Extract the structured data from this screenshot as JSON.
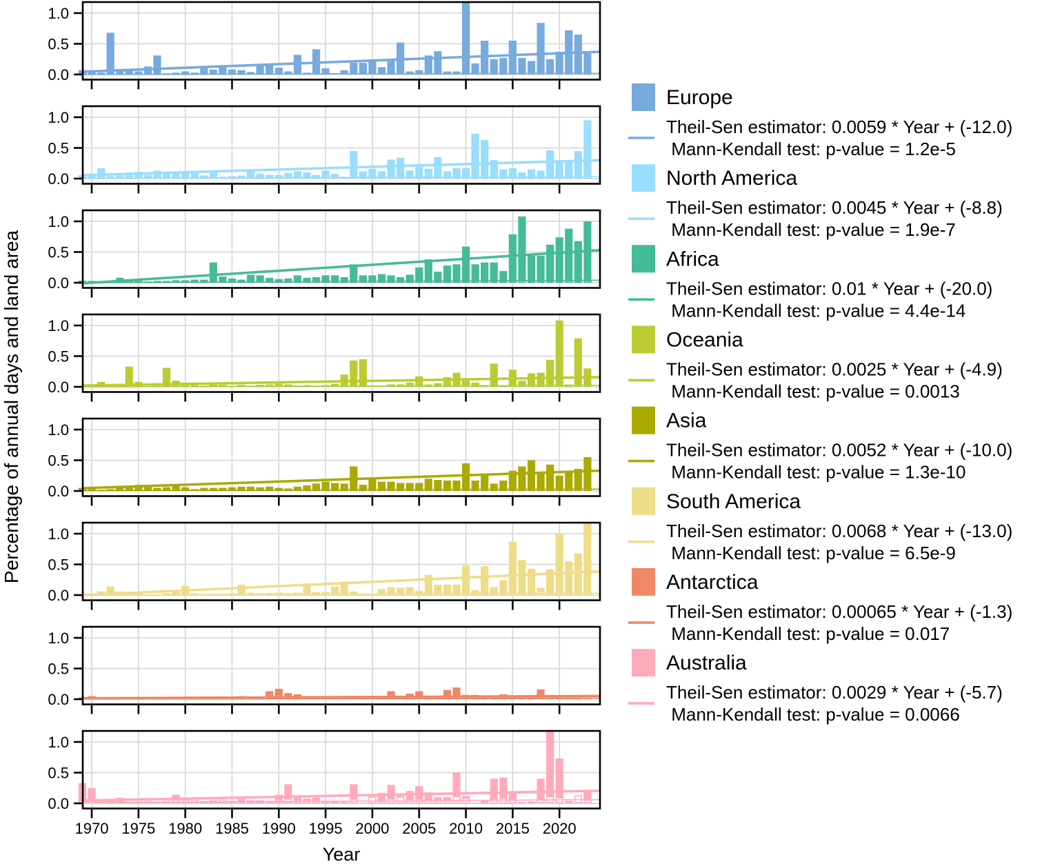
{
  "ylabel": "Percentage of annual days and land area",
  "xlabel": "Year",
  "y_tick_labels": [
    "0.0",
    "0.5",
    "1.0"
  ],
  "x_tick_labels": [
    "1970",
    "1975",
    "1980",
    "1985",
    "1990",
    "1995",
    "2000",
    "2005",
    "2010",
    "2015",
    "2020"
  ],
  "chart_data": {
    "type": "bar",
    "x_start_year": 1969,
    "ylim": [
      -0.085,
      1.185
    ],
    "y_ticks": [
      0.0,
      0.5,
      1.0
    ],
    "x_ticks": [
      1970,
      1975,
      1980,
      1985,
      1990,
      1995,
      2000,
      2005,
      2010,
      2015,
      2020
    ],
    "grid": true,
    "legend_position": "right",
    "panels": [
      {
        "name": "Europe",
        "color": "#77AADD",
        "days": [
          0.07,
          0.04,
          0.03,
          0.68,
          0.09,
          0.06,
          0.05,
          0.13,
          0.31,
          0.02,
          0.03,
          0.05,
          0.03,
          0.12,
          0.08,
          0.12,
          0.08,
          0.07,
          0.04,
          0.15,
          0.15,
          0.11,
          0.05,
          0.32,
          0.03,
          0.41,
          0.1,
          0.02,
          0.07,
          0.19,
          0.19,
          0.23,
          0.12,
          0.22,
          0.52,
          0.05,
          0.07,
          0.31,
          0.38,
          0.05,
          0.05,
          1.25,
          0.18,
          0.55,
          0.25,
          0.27,
          0.55,
          0.27,
          0.22,
          0.84,
          0.25,
          0.37,
          0.72,
          0.65,
          0.38
        ],
        "area": [
          0.01,
          0.01,
          0.01,
          0.02,
          0.01,
          0.01,
          0.01,
          0.01,
          0.01,
          0.01,
          0.01,
          0.01,
          0.01,
          0.01,
          0.01,
          0.01,
          0.01,
          0.01,
          0.01,
          0.01,
          0.01,
          0.01,
          0.01,
          0.01,
          0.01,
          0.01,
          0.01,
          0.01,
          0.01,
          0.01,
          0.01,
          0.01,
          0.01,
          0.01,
          0.02,
          0.01,
          0.01,
          0.01,
          0.01,
          0.01,
          0.01,
          0.02,
          0.01,
          0.02,
          0.01,
          0.01,
          0.02,
          0.01,
          0.01,
          0.02,
          0.01,
          0.01,
          0.02,
          0.02,
          0.01
        ],
        "trend_line": {
          "y1969": 0.045,
          "y2024": 0.37
        },
        "area_trend_line": {
          "y1969": 0.0,
          "y2024": 0.02
        },
        "theil_sen_label": "Theil-Sen estimator: 0.0059 * Year + (-12.0)",
        "mann_kendall_label": " Mann-Kendall test: p-value = 1.2e-5"
      },
      {
        "name": "North America",
        "color": "#99DDFF",
        "days": [
          0.06,
          0.06,
          0.17,
          0.04,
          0.05,
          0.1,
          0.11,
          0.06,
          0.13,
          0.08,
          0.08,
          0.11,
          0.12,
          0.05,
          0.12,
          0.03,
          0.04,
          0.05,
          0.14,
          0.08,
          0.06,
          0.06,
          0.09,
          0.12,
          0.1,
          0.06,
          0.13,
          0.08,
          0.03,
          0.45,
          0.12,
          0.16,
          0.12,
          0.31,
          0.34,
          0.13,
          0.19,
          0.16,
          0.35,
          0.12,
          0.17,
          0.17,
          0.73,
          0.63,
          0.3,
          0.15,
          0.17,
          0.1,
          0.15,
          0.13,
          0.46,
          0.28,
          0.28,
          0.45,
          0.95
        ],
        "area": [
          0.01,
          0.01,
          0.02,
          0.01,
          0.01,
          0.01,
          0.01,
          0.01,
          0.02,
          0.01,
          0.01,
          0.01,
          0.02,
          0.01,
          0.02,
          0.01,
          0.01,
          0.01,
          0.02,
          0.01,
          0.01,
          0.01,
          0.01,
          0.02,
          0.01,
          0.01,
          0.03,
          0.025,
          0.01,
          0.02,
          0.02,
          0.02,
          0.02,
          0.02,
          0.02,
          0.02,
          0.02,
          0.02,
          0.02,
          0.02,
          0.02,
          0.02,
          0.02,
          0.02,
          0.02,
          0.02,
          0.02,
          0.01,
          0.02,
          0.02,
          0.02,
          0.02,
          0.02,
          0.02,
          0.03
        ],
        "trend_line": {
          "y1969": 0.055,
          "y2024": 0.3
        },
        "area_trend_line": {
          "y1969": 0.005,
          "y2024": 0.03
        },
        "theil_sen_label": "Theil-Sen estimator: 0.0045 * Year + (-8.8)",
        "mann_kendall_label": " Mann-Kendall test: p-value = 1.9e-7"
      },
      {
        "name": "Africa",
        "color": "#44BB99",
        "days": [
          0.03,
          0.03,
          0.02,
          0.02,
          0.08,
          0.03,
          0.03,
          0.02,
          0.03,
          0.03,
          0.04,
          0.04,
          0.05,
          0.05,
          0.33,
          0.1,
          0.07,
          0.05,
          0.13,
          0.12,
          0.08,
          0.06,
          0.07,
          0.12,
          0.08,
          0.09,
          0.12,
          0.12,
          0.09,
          0.3,
          0.12,
          0.12,
          0.14,
          0.12,
          0.09,
          0.13,
          0.25,
          0.38,
          0.18,
          0.28,
          0.3,
          0.59,
          0.3,
          0.33,
          0.33,
          0.19,
          0.79,
          1.08,
          0.44,
          0.44,
          0.62,
          0.74,
          0.88,
          0.68,
          1.0
        ],
        "area": [
          0.025,
          0.02,
          0.015,
          0.015,
          0.02,
          0.01,
          0.01,
          0.01,
          0.01,
          0.01,
          0.01,
          0.01,
          0.01,
          0.01,
          0.02,
          0.01,
          0.01,
          0.01,
          0.01,
          0.01,
          0.01,
          0.01,
          0.01,
          0.01,
          0.01,
          0.01,
          0.01,
          0.02,
          0.02,
          0.02,
          0.01,
          0.01,
          0.01,
          0.01,
          0.01,
          0.01,
          0.02,
          0.02,
          0.01,
          0.02,
          0.02,
          0.02,
          0.02,
          0.02,
          0.02,
          0.02,
          0.02,
          0.03,
          0.02,
          0.02,
          0.02,
          0.02,
          0.03,
          0.02,
          0.03
        ],
        "trend_line": {
          "y1969": -0.01,
          "y2024": 0.53
        },
        "area_trend_line": {
          "y1969": 0.0,
          "y2024": 0.04
        },
        "theil_sen_label": "Theil-Sen estimator: 0.01 * Year + (-20.0)",
        "mann_kendall_label": " Mann-Kendall test: p-value = 4.4e-14"
      },
      {
        "name": "Oceania",
        "color": "#BBCC33",
        "days": [
          0.01,
          0.02,
          0.08,
          0.03,
          0.05,
          0.33,
          0.08,
          0.01,
          0.02,
          0.31,
          0.1,
          0.07,
          0.03,
          0.02,
          0.03,
          0.02,
          0.01,
          0.03,
          0.02,
          0.03,
          0.04,
          0.05,
          0.04,
          0.02,
          0.03,
          0.02,
          0.03,
          0.05,
          0.2,
          0.43,
          0.45,
          0.02,
          0.01,
          0.04,
          0.04,
          0.07,
          0.17,
          0.04,
          0.06,
          0.16,
          0.23,
          0.1,
          0.07,
          0.03,
          0.38,
          0.02,
          0.28,
          0.1,
          0.22,
          0.23,
          0.44,
          1.08,
          0.03,
          0.79,
          0.3
        ],
        "area": [
          0.01,
          0.01,
          0.01,
          0.01,
          0.01,
          0.02,
          0.01,
          0.01,
          0.01,
          0.02,
          0.01,
          0.01,
          0.01,
          0.01,
          0.025,
          0.025,
          0.01,
          0.025,
          0.01,
          0.025,
          0.03,
          0.03,
          0.025,
          0.01,
          0.02,
          0.01,
          0.02,
          0.02,
          0.02,
          0.02,
          0.02,
          0.01,
          0.01,
          0.03,
          0.03,
          0.03,
          0.02,
          0.01,
          0.01,
          0.02,
          0.02,
          0.02,
          0.02,
          0.01,
          0.02,
          0.01,
          0.02,
          0.02,
          0.02,
          0.02,
          0.02,
          0.03,
          0.03,
          0.03,
          0.02
        ],
        "trend_line": {
          "y1969": 0.02,
          "y2024": 0.158
        },
        "area_trend_line": {
          "y1969": 0.0,
          "y2024": 0.025
        },
        "theil_sen_label": "Theil-Sen estimator: 0.0025 * Year + (-4.9)",
        "mann_kendall_label": " Mann-Kendall test: p-value = 0.0013"
      },
      {
        "name": "Asia",
        "color": "#AAAA00",
        "days": [
          0.05,
          0.05,
          0.02,
          0.03,
          0.08,
          0.06,
          0.1,
          0.1,
          0.05,
          0.06,
          0.08,
          0.06,
          0.03,
          0.05,
          0.05,
          0.05,
          0.06,
          0.07,
          0.07,
          0.06,
          0.07,
          0.05,
          0.04,
          0.07,
          0.09,
          0.12,
          0.15,
          0.13,
          0.12,
          0.4,
          0.1,
          0.22,
          0.15,
          0.15,
          0.13,
          0.13,
          0.13,
          0.2,
          0.18,
          0.17,
          0.17,
          0.45,
          0.17,
          0.28,
          0.12,
          0.17,
          0.33,
          0.4,
          0.5,
          0.28,
          0.43,
          0.25,
          0.33,
          0.36,
          0.55
        ],
        "area": [
          0.02,
          0.02,
          0.01,
          0.01,
          0.02,
          0.02,
          0.02,
          0.02,
          0.01,
          0.02,
          0.02,
          0.02,
          0.01,
          0.01,
          0.01,
          0.01,
          0.02,
          0.02,
          0.02,
          0.02,
          0.02,
          0.01,
          0.01,
          0.02,
          0.02,
          0.02,
          0.02,
          0.02,
          0.02,
          0.03,
          0.02,
          0.02,
          0.02,
          0.02,
          0.02,
          0.02,
          0.02,
          0.02,
          0.02,
          0.02,
          0.02,
          0.03,
          0.02,
          0.03,
          0.02,
          0.02,
          0.03,
          0.03,
          0.03,
          0.03,
          0.03,
          0.02,
          0.03,
          0.03,
          0.03
        ],
        "trend_line": {
          "y1969": 0.045,
          "y2024": 0.33
        },
        "area_trend_line": {
          "y1969": 0.005,
          "y2024": 0.03
        },
        "theil_sen_label": "Theil-Sen estimator: 0.0052 * Year + (-10.0)",
        "mann_kendall_label": " Mann-Kendall test: p-value = 1.3e-10"
      },
      {
        "name": "South America",
        "color": "#EEDD88",
        "days": [
          0.01,
          0.02,
          0.06,
          0.14,
          0.06,
          0.01,
          0.05,
          0.01,
          0.01,
          0.03,
          0.05,
          0.15,
          0.03,
          0.01,
          0.02,
          0.02,
          0.03,
          0.17,
          0.04,
          0.03,
          0.02,
          0.04,
          0.03,
          0.04,
          0.17,
          0.05,
          0.05,
          0.14,
          0.22,
          0.06,
          0.01,
          0.02,
          0.1,
          0.13,
          0.12,
          0.13,
          0.07,
          0.33,
          0.17,
          0.17,
          0.17,
          0.48,
          0.08,
          0.47,
          0.13,
          0.24,
          0.87,
          0.57,
          0.43,
          0.12,
          0.42,
          1.0,
          0.55,
          0.68,
          1.17
        ],
        "area": [
          0.01,
          0.01,
          0.01,
          0.02,
          0.01,
          0.01,
          0.01,
          0.01,
          0.01,
          0.01,
          0.01,
          0.02,
          0.01,
          0.01,
          0.01,
          0.01,
          0.01,
          0.02,
          0.01,
          0.01,
          0.025,
          0.03,
          0.02,
          0.01,
          0.02,
          0.01,
          0.01,
          0.02,
          0.03,
          0.01,
          0.01,
          0.01,
          0.02,
          0.02,
          0.02,
          0.02,
          0.01,
          0.03,
          0.02,
          0.02,
          0.02,
          0.03,
          0.04,
          0.03,
          0.02,
          0.02,
          0.04,
          0.03,
          0.03,
          0.05,
          0.03,
          0.05,
          0.03,
          0.04,
          0.05
        ],
        "trend_line": {
          "y1969": 0.0,
          "y2024": 0.385
        },
        "area_trend_line": {
          "y1969": 0.0,
          "y2024": 0.03
        },
        "theil_sen_label": "Theil-Sen estimator: 0.0068 * Year + (-13.0)",
        "mann_kendall_label": " Mann-Kendall test: p-value = 6.5e-9"
      },
      {
        "name": "Antarctica",
        "color": "#EE8866",
        "days": [
          0.03,
          0.05,
          0.03,
          0.02,
          0.03,
          0.02,
          0.03,
          0.03,
          0.02,
          0.03,
          0.02,
          0.03,
          0.03,
          0.02,
          0.04,
          0.03,
          0.03,
          0.05,
          0.03,
          0.03,
          0.13,
          0.17,
          0.1,
          0.08,
          0.03,
          0.03,
          0.04,
          0.04,
          0.03,
          0.03,
          0.03,
          0.03,
          0.03,
          0.13,
          0.05,
          0.09,
          0.13,
          0.02,
          0.04,
          0.15,
          0.19,
          0.07,
          0.07,
          0.04,
          0.03,
          0.08,
          0.03,
          0.04,
          0.04,
          0.16,
          0.05,
          0.04,
          0.05,
          0.06,
          0.01
        ],
        "area": [
          0.01,
          0.02,
          0.01,
          0.01,
          0.01,
          0.01,
          0.01,
          0.01,
          0.01,
          0.01,
          0.01,
          0.01,
          0.01,
          0.01,
          0.01,
          0.01,
          0.01,
          0.02,
          0.01,
          0.01,
          0.03,
          0.03,
          0.02,
          0.02,
          0.01,
          0.01,
          0.01,
          0.01,
          0.01,
          0.01,
          0.01,
          0.01,
          0.015,
          0.03,
          0.02,
          0.025,
          0.035,
          0.015,
          0.02,
          0.04,
          0.05,
          0.04,
          0.04,
          0.03,
          0.02,
          0.03,
          0.02,
          0.03,
          0.03,
          0.05,
          0.04,
          0.03,
          0.04,
          0.045,
          0.01
        ],
        "trend_line": {
          "y1969": 0.015,
          "y2024": 0.052
        },
        "area_trend_line": {
          "y1969": 0.005,
          "y2024": 0.02
        },
        "theil_sen_label": "Theil-Sen estimator: 0.00065 * Year + (-1.3)",
        "mann_kendall_label": " Mann-Kendall test: p-value = 0.017"
      },
      {
        "name": "Australia",
        "color": "#FFAABB",
        "days": [
          0.33,
          0.25,
          0.05,
          0.03,
          0.09,
          0.02,
          0.03,
          0.02,
          0.03,
          0.04,
          0.14,
          0.04,
          0.04,
          0.03,
          0.05,
          0.05,
          0.04,
          0.07,
          0.05,
          0.05,
          0.04,
          0.14,
          0.31,
          0.11,
          0.08,
          0.09,
          0.03,
          0.03,
          0.02,
          0.31,
          0.01,
          0.12,
          0.17,
          0.3,
          0.12,
          0.2,
          0.28,
          0.18,
          0.1,
          0.1,
          0.5,
          0.12,
          0.01,
          0.04,
          0.4,
          0.42,
          0.2,
          0.02,
          0.03,
          0.4,
          1.2,
          0.73,
          0.04,
          0.02,
          0.22
        ],
        "area": [
          0.04,
          0.04,
          0.01,
          0.03,
          0.02,
          0.01,
          0.02,
          0.03,
          0.02,
          0.03,
          0.05,
          0.05,
          0.05,
          0.03,
          0.04,
          0.05,
          0.03,
          0.04,
          0.03,
          0.04,
          0.03,
          0.05,
          0.07,
          0.05,
          0.05,
          0.04,
          0.02,
          0.02,
          0.01,
          0.07,
          0.01,
          0.1,
          0.05,
          0.07,
          0.1,
          0.06,
          0.07,
          0.06,
          0.04,
          0.05,
          0.11,
          0.08,
          0.01,
          0.02,
          0.07,
          0.08,
          0.05,
          0.01,
          0.02,
          0.06,
          0.11,
          0.09,
          0.02,
          0.12,
          0.05
        ],
        "trend_line": {
          "y1969": 0.045,
          "y2024": 0.205
        },
        "area_trend_line": {
          "y1969": 0.01,
          "y2024": 0.06
        },
        "theil_sen_label": "Theil-Sen estimator: 0.0029 * Year + (-5.7)",
        "mann_kendall_label": " Mann-Kendall test: p-value = 0.0066"
      }
    ]
  }
}
